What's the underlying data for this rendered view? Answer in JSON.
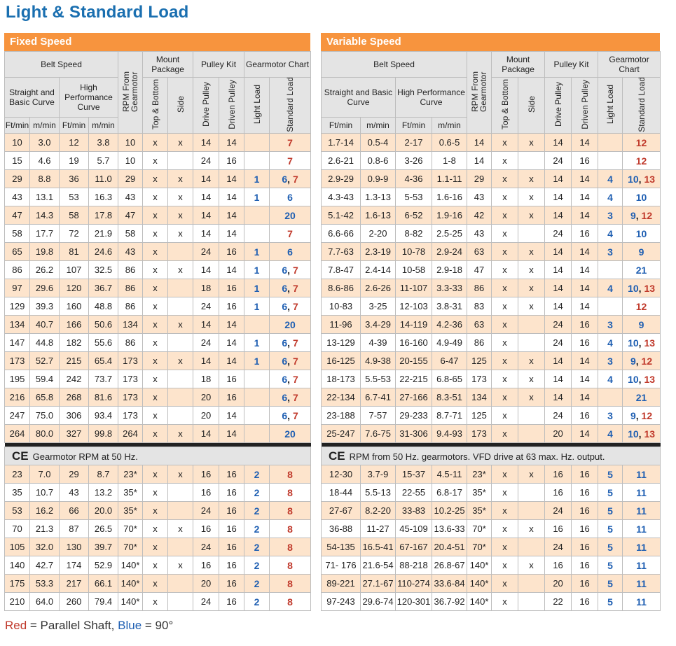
{
  "title": "Light & Standard Load",
  "headers": {
    "belt_speed": "Belt Speed",
    "rpm": "RPM From Gearmotor",
    "mount_package": "Mount Package",
    "pulley_kit": "Pulley Kit",
    "gearmotor_chart": "Gearmotor Chart",
    "straight": "Straight and Basic Curve",
    "high_perf": "High Performance Curve",
    "top_bottom": "Top & Bottom",
    "side": "Side",
    "drive": "Drive Pulley",
    "driven": "Driven Pulley",
    "light": "Light Load",
    "standard": "Standard Load",
    "ftmin": "Ft/min",
    "mmin": "m/min"
  },
  "fixed": {
    "title": "Fixed Speed",
    "rows": [
      [
        "10",
        "3.0",
        "12",
        "3.8",
        "10",
        "x",
        "x",
        "14",
        "14",
        "",
        [
          [
            "7",
            "r"
          ]
        ]
      ],
      [
        "15",
        "4.6",
        "19",
        "5.7",
        "10",
        "x",
        "",
        "24",
        "16",
        "",
        [
          [
            "7",
            "r"
          ]
        ]
      ],
      [
        "29",
        "8.8",
        "36",
        "11.0",
        "29",
        "x",
        "x",
        "14",
        "14",
        "1",
        [
          [
            "6",
            "b"
          ],
          [
            ", ",
            ""
          ],
          [
            "7",
            "r"
          ]
        ]
      ],
      [
        "43",
        "13.1",
        "53",
        "16.3",
        "43",
        "x",
        "x",
        "14",
        "14",
        "1",
        [
          [
            "6",
            "b"
          ]
        ]
      ],
      [
        "47",
        "14.3",
        "58",
        "17.8",
        "47",
        "x",
        "x",
        "14",
        "14",
        "",
        [
          [
            "20",
            "b"
          ]
        ]
      ],
      [
        "58",
        "17.7",
        "72",
        "21.9",
        "58",
        "x",
        "x",
        "14",
        "14",
        "",
        [
          [
            "7",
            "r"
          ]
        ]
      ],
      [
        "65",
        "19.8",
        "81",
        "24.6",
        "43",
        "x",
        "",
        "24",
        "16",
        "1",
        [
          [
            "6",
            "b"
          ]
        ]
      ],
      [
        "86",
        "26.2",
        "107",
        "32.5",
        "86",
        "x",
        "x",
        "14",
        "14",
        "1",
        [
          [
            "6",
            "b"
          ],
          [
            ", ",
            ""
          ],
          [
            "7",
            "r"
          ]
        ]
      ],
      [
        "97",
        "29.6",
        "120",
        "36.7",
        "86",
        "x",
        "",
        "18",
        "16",
        "1",
        [
          [
            "6",
            "b"
          ],
          [
            ", ",
            ""
          ],
          [
            "7",
            "r"
          ]
        ]
      ],
      [
        "129",
        "39.3",
        "160",
        "48.8",
        "86",
        "x",
        "",
        "24",
        "16",
        "1",
        [
          [
            "6",
            "b"
          ],
          [
            ", ",
            ""
          ],
          [
            "7",
            "r"
          ]
        ]
      ],
      [
        "134",
        "40.7",
        "166",
        "50.6",
        "134",
        "x",
        "x",
        "14",
        "14",
        "",
        [
          [
            "20",
            "b"
          ]
        ]
      ],
      [
        "147",
        "44.8",
        "182",
        "55.6",
        "86",
        "x",
        "",
        "24",
        "14",
        "1",
        [
          [
            "6",
            "b"
          ],
          [
            ", ",
            ""
          ],
          [
            "7",
            "r"
          ]
        ]
      ],
      [
        "173",
        "52.7",
        "215",
        "65.4",
        "173",
        "x",
        "x",
        "14",
        "14",
        "1",
        [
          [
            "6",
            "b"
          ],
          [
            ", ",
            ""
          ],
          [
            "7",
            "r"
          ]
        ]
      ],
      [
        "195",
        "59.4",
        "242",
        "73.7",
        "173",
        "x",
        "",
        "18",
        "16",
        "",
        [
          [
            "6",
            "b"
          ],
          [
            ", ",
            ""
          ],
          [
            "7",
            "r"
          ]
        ]
      ],
      [
        "216",
        "65.8",
        "268",
        "81.6",
        "173",
        "x",
        "",
        "20",
        "16",
        "",
        [
          [
            "6",
            "b"
          ],
          [
            ", ",
            ""
          ],
          [
            "7",
            "r"
          ]
        ]
      ],
      [
        "247",
        "75.0",
        "306",
        "93.4",
        "173",
        "x",
        "",
        "20",
        "14",
        "",
        [
          [
            "6",
            "b"
          ],
          [
            ", ",
            ""
          ],
          [
            "7",
            "r"
          ]
        ]
      ],
      [
        "264",
        "80.0",
        "327",
        "99.8",
        "264",
        "x",
        "x",
        "14",
        "14",
        "",
        [
          [
            "20",
            "b"
          ]
        ]
      ]
    ],
    "ce_note": "Gearmotor RPM at 50 Hz.",
    "ce_rows": [
      [
        "23",
        "7.0",
        "29",
        "8.7",
        "23*",
        "x",
        "x",
        "16",
        "16",
        "2",
        [
          [
            "8",
            "r"
          ]
        ]
      ],
      [
        "35",
        "10.7",
        "43",
        "13.2",
        "35*",
        "x",
        "",
        "16",
        "16",
        "2",
        [
          [
            "8",
            "r"
          ]
        ]
      ],
      [
        "53",
        "16.2",
        "66",
        "20.0",
        "35*",
        "x",
        "",
        "24",
        "16",
        "2",
        [
          [
            "8",
            "r"
          ]
        ]
      ],
      [
        "70",
        "21.3",
        "87",
        "26.5",
        "70*",
        "x",
        "x",
        "16",
        "16",
        "2",
        [
          [
            "8",
            "r"
          ]
        ]
      ],
      [
        "105",
        "32.0",
        "130",
        "39.7",
        "70*",
        "x",
        "",
        "24",
        "16",
        "2",
        [
          [
            "8",
            "r"
          ]
        ]
      ],
      [
        "140",
        "42.7",
        "174",
        "52.9",
        "140*",
        "x",
        "x",
        "16",
        "16",
        "2",
        [
          [
            "8",
            "r"
          ]
        ]
      ],
      [
        "175",
        "53.3",
        "217",
        "66.1",
        "140*",
        "x",
        "",
        "20",
        "16",
        "2",
        [
          [
            "8",
            "r"
          ]
        ]
      ],
      [
        "210",
        "64.0",
        "260",
        "79.4",
        "140*",
        "x",
        "",
        "24",
        "16",
        "2",
        [
          [
            "8",
            "r"
          ]
        ]
      ]
    ]
  },
  "variable": {
    "title": "Variable Speed",
    "rows": [
      [
        "1.7-14",
        "0.5-4",
        "2-17",
        "0.6-5",
        "14",
        "x",
        "x",
        "14",
        "14",
        "",
        [
          [
            "12",
            "r"
          ]
        ]
      ],
      [
        "2.6-21",
        "0.8-6",
        "3-26",
        "1-8",
        "14",
        "x",
        "",
        "24",
        "16",
        "",
        [
          [
            "12",
            "r"
          ]
        ]
      ],
      [
        "2.9-29",
        "0.9-9",
        "4-36",
        "1.1-11",
        "29",
        "x",
        "x",
        "14",
        "14",
        "4",
        [
          [
            "10",
            "b"
          ],
          [
            ", ",
            ""
          ],
          [
            "13",
            "r"
          ]
        ]
      ],
      [
        "4.3-43",
        "1.3-13",
        "5-53",
        "1.6-16",
        "43",
        "x",
        "x",
        "14",
        "14",
        "4",
        [
          [
            "10",
            "b"
          ]
        ]
      ],
      [
        "5.1-42",
        "1.6-13",
        "6-52",
        "1.9-16",
        "42",
        "x",
        "x",
        "14",
        "14",
        "3",
        [
          [
            "9",
            "b"
          ],
          [
            ", ",
            ""
          ],
          [
            "12",
            "r"
          ]
        ]
      ],
      [
        "6.6-66",
        "2-20",
        "8-82",
        "2.5-25",
        "43",
        "x",
        "",
        "24",
        "16",
        "4",
        [
          [
            "10",
            "b"
          ]
        ]
      ],
      [
        "7.7-63",
        "2.3-19",
        "10-78",
        "2.9-24",
        "63",
        "x",
        "x",
        "14",
        "14",
        "3",
        [
          [
            "9",
            "b"
          ]
        ]
      ],
      [
        "7.8-47",
        "2.4-14",
        "10-58",
        "2.9-18",
        "47",
        "x",
        "x",
        "14",
        "14",
        "",
        [
          [
            "21",
            "b"
          ]
        ]
      ],
      [
        "8.6-86",
        "2.6-26",
        "11-107",
        "3.3-33",
        "86",
        "x",
        "x",
        "14",
        "14",
        "4",
        [
          [
            "10",
            "b"
          ],
          [
            ", ",
            ""
          ],
          [
            "13",
            "r"
          ]
        ]
      ],
      [
        "10-83",
        "3-25",
        "12-103",
        "3.8-31",
        "83",
        "x",
        "x",
        "14",
        "14",
        "",
        [
          [
            "12",
            "r"
          ]
        ]
      ],
      [
        "11-96",
        "3.4-29",
        "14-119",
        "4.2-36",
        "63",
        "x",
        "",
        "24",
        "16",
        "3",
        [
          [
            "9",
            "b"
          ]
        ]
      ],
      [
        "13-129",
        "4-39",
        "16-160",
        "4.9-49",
        "86",
        "x",
        "",
        "24",
        "16",
        "4",
        [
          [
            "10",
            "b"
          ],
          [
            ", ",
            ""
          ],
          [
            "13",
            "r"
          ]
        ]
      ],
      [
        "16-125",
        "4.9-38",
        "20-155",
        "6-47",
        "125",
        "x",
        "x",
        "14",
        "14",
        "3",
        [
          [
            "9",
            "b"
          ],
          [
            ", ",
            ""
          ],
          [
            "12",
            "r"
          ]
        ]
      ],
      [
        "18-173",
        "5.5-53",
        "22-215",
        "6.8-65",
        "173",
        "x",
        "x",
        "14",
        "14",
        "4",
        [
          [
            "10",
            "b"
          ],
          [
            ", ",
            ""
          ],
          [
            "13",
            "r"
          ]
        ]
      ],
      [
        "22-134",
        "6.7-41",
        "27-166",
        "8.3-51",
        "134",
        "x",
        "x",
        "14",
        "14",
        "",
        [
          [
            "21",
            "b"
          ]
        ]
      ],
      [
        "23-188",
        "7-57",
        "29-233",
        "8.7-71",
        "125",
        "x",
        "",
        "24",
        "16",
        "3",
        [
          [
            "9",
            "b"
          ],
          [
            ", ",
            ""
          ],
          [
            "12",
            "r"
          ]
        ]
      ],
      [
        "25-247",
        "7.6-75",
        "31-306",
        "9.4-93",
        "173",
        "x",
        "",
        "20",
        "14",
        "4",
        [
          [
            "10",
            "b"
          ],
          [
            ", ",
            ""
          ],
          [
            "13",
            "r"
          ]
        ]
      ]
    ],
    "ce_note": "RPM from 50 Hz. gearmotors. VFD drive at 63 max. Hz. output.",
    "ce_rows": [
      [
        "12-30",
        "3.7-9",
        "15-37",
        "4.5-11",
        "23*",
        "x",
        "x",
        "16",
        "16",
        "5",
        [
          [
            "11",
            "b"
          ]
        ]
      ],
      [
        "18-44",
        "5.5-13",
        "22-55",
        "6.8-17",
        "35*",
        "x",
        "",
        "16",
        "16",
        "5",
        [
          [
            "11",
            "b"
          ]
        ]
      ],
      [
        "27-67",
        "8.2-20",
        "33-83",
        "10.2-25",
        "35*",
        "x",
        "",
        "24",
        "16",
        "5",
        [
          [
            "11",
            "b"
          ]
        ]
      ],
      [
        "36-88",
        "11-27",
        "45-109",
        "13.6-33",
        "70*",
        "x",
        "x",
        "16",
        "16",
        "5",
        [
          [
            "11",
            "b"
          ]
        ]
      ],
      [
        "54-135",
        "16.5-41",
        "67-167",
        "20.4-51",
        "70*",
        "x",
        "",
        "24",
        "16",
        "5",
        [
          [
            "11",
            "b"
          ]
        ]
      ],
      [
        "71- 176",
        "21.6-54",
        "88-218",
        "26.8-67",
        "140*",
        "x",
        "x",
        "16",
        "16",
        "5",
        [
          [
            "11",
            "b"
          ]
        ]
      ],
      [
        "89-221",
        "27.1-67",
        "110-274",
        "33.6-84",
        "140*",
        "x",
        "",
        "20",
        "16",
        "5",
        [
          [
            "11",
            "b"
          ]
        ]
      ],
      [
        "97-243",
        "29.6-74",
        "120-301",
        "36.7-92",
        "140*",
        "x",
        "",
        "22",
        "16",
        "5",
        [
          [
            "11",
            "b"
          ]
        ]
      ]
    ]
  },
  "ce_mark": "CE",
  "legend": {
    "red": "Red",
    "eq1": " = Parallel Shaft, ",
    "blue": "Blue",
    "eq2": " = 90°"
  },
  "colors": {
    "orange": "#f7943e",
    "row_tint": "#fde4cc",
    "header_gray": "#e4e4e4",
    "title_blue": "#1a6fb0",
    "red": "#c0392b",
    "blue": "#1f5fb2"
  }
}
